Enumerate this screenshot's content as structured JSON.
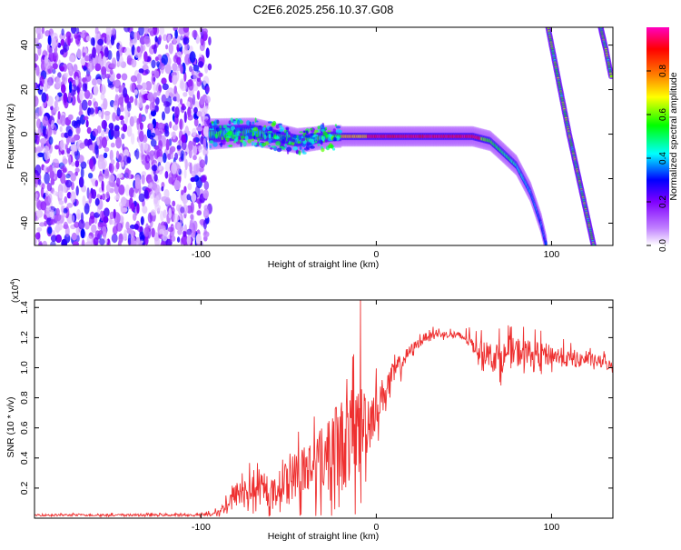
{
  "title": "C2E6.2025.256.10.37.G08",
  "chart_data": [
    {
      "type": "heatmap",
      "title": "C2E6.2025.256.10.37.G08",
      "xlabel": "Height of straight line (km)",
      "ylabel": "Frequency (Hz)",
      "xlim": [
        -195,
        135
      ],
      "ylim": [
        -50,
        48
      ],
      "xticks": [
        -100,
        0,
        100
      ],
      "yticks": [
        -40,
        -20,
        0,
        20,
        40
      ],
      "grid": false,
      "colorbar": {
        "label": "Normalized spectral amplitude",
        "range": [
          0.0,
          1.0
        ],
        "ticks": [
          0.0,
          0.2,
          0.4,
          0.6,
          0.8
        ],
        "colors": [
          "#ffffff",
          "#c080ff",
          "#8000ff",
          "#0000ff",
          "#00ffff",
          "#00ff00",
          "#ffff00",
          "#ff8000",
          "#ff0000",
          "#ff00c0"
        ]
      },
      "features": {
        "noise_region_x": [
          -195,
          -95
        ],
        "carrier_track": [
          [
            -95,
            0
          ],
          [
            -70,
            1
          ],
          [
            -45,
            -3
          ],
          [
            -25,
            -1
          ],
          [
            0,
            -1
          ],
          [
            30,
            -1
          ],
          [
            55,
            -1
          ],
          [
            65,
            -3
          ],
          [
            72,
            -8
          ],
          [
            80,
            -14
          ],
          [
            88,
            -26
          ],
          [
            94,
            -40
          ],
          [
            97,
            -50
          ]
        ],
        "fold_track_1": [
          [
            98,
            48
          ],
          [
            110,
            0
          ],
          [
            124,
            -50
          ]
        ],
        "fold_track_2": [
          [
            128,
            48
          ],
          [
            131,
            38
          ],
          [
            134,
            26
          ]
        ]
      }
    },
    {
      "type": "line",
      "xlabel": "Height of straight line (km)",
      "ylabel": "SNR (10 * v/v)",
      "yscale_label": "(x10^4)",
      "xlim": [
        -195,
        135
      ],
      "ylim": [
        0,
        1.45
      ],
      "xticks": [
        -100,
        0,
        100
      ],
      "yticks": [
        0.2,
        0.4,
        0.6,
        0.8,
        1.0,
        1.2,
        1.4
      ],
      "ytick_labels": [
        "0.2",
        "0.4",
        "0.6",
        "0.8",
        "1.0",
        "1.2",
        "1.4"
      ],
      "series": [
        {
          "name": "SNR",
          "color": "#ee3030",
          "x": [
            -195,
            -150,
            -100,
            -90,
            -80,
            -70,
            -60,
            -50,
            -40,
            -30,
            -20,
            -10,
            0,
            10,
            20,
            30,
            40,
            50,
            60,
            70,
            80,
            90,
            100,
            110,
            120,
            130,
            135
          ],
          "base": [
            0.02,
            0.02,
            0.02,
            0.03,
            0.15,
            0.18,
            0.15,
            0.25,
            0.3,
            0.38,
            0.45,
            0.55,
            0.72,
            0.95,
            1.12,
            1.22,
            1.22,
            1.2,
            1.1,
            1.05,
            1.1,
            1.08,
            1.08,
            1.05,
            1.05,
            1.03,
            1.0
          ],
          "spread": [
            0.01,
            0.01,
            0.01,
            0.03,
            0.12,
            0.14,
            0.12,
            0.2,
            0.28,
            0.35,
            0.45,
            0.45,
            0.2,
            0.12,
            0.05,
            0.04,
            0.03,
            0.05,
            0.1,
            0.14,
            0.14,
            0.12,
            0.1,
            0.08,
            0.06,
            0.06,
            0.05
          ]
        }
      ],
      "peak": {
        "x": -9,
        "y": 1.45
      }
    }
  ]
}
